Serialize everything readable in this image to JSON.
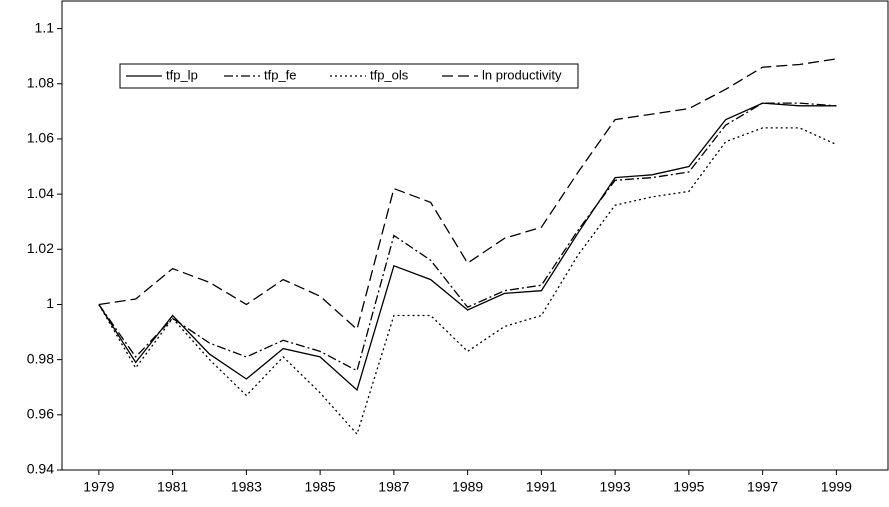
{
  "chart_data": {
    "type": "line",
    "x": [
      1979,
      1980,
      1981,
      1982,
      1983,
      1984,
      1985,
      1986,
      1987,
      1988,
      1989,
      1990,
      1991,
      1992,
      1993,
      1994,
      1995,
      1996,
      1997,
      1998,
      1999
    ],
    "xlim": [
      1978,
      2000.4
    ],
    "xticks": [
      1979,
      1981,
      1983,
      1985,
      1987,
      1989,
      1991,
      1993,
      1995,
      1997,
      1999
    ],
    "ylim": [
      0.94,
      1.11
    ],
    "yticks": [
      0.94,
      0.96,
      0.98,
      1,
      1.02,
      1.04,
      1.06,
      1.08,
      1.1
    ],
    "grid": false,
    "legend": "top-left",
    "series": [
      {
        "name": "tfp_lp",
        "color": "#000000",
        "dash": "solid",
        "values": [
          1.0,
          0.979,
          0.996,
          0.982,
          0.973,
          0.984,
          0.981,
          0.969,
          1.014,
          1.009,
          0.998,
          1.004,
          1.005,
          1.026,
          1.046,
          1.047,
          1.05,
          1.067,
          1.073,
          1.072,
          1.072
        ]
      },
      {
        "name": "tfp_fe",
        "color": "#000000",
        "dash": "dashdot",
        "values": [
          1.0,
          0.981,
          0.995,
          0.986,
          0.981,
          0.987,
          0.983,
          0.976,
          1.025,
          1.016,
          0.999,
          1.005,
          1.007,
          1.027,
          1.045,
          1.046,
          1.048,
          1.065,
          1.073,
          1.073,
          1.072
        ]
      },
      {
        "name": "tfp_ols",
        "color": "#000000",
        "dash": "dotted",
        "values": [
          1.0,
          0.977,
          0.995,
          0.98,
          0.967,
          0.981,
          0.968,
          0.953,
          0.996,
          0.996,
          0.983,
          0.992,
          0.996,
          1.018,
          1.036,
          1.039,
          1.041,
          1.059,
          1.064,
          1.064,
          1.058
        ]
      },
      {
        "name": "ln productivity",
        "color": "#000000",
        "dash": "dashed",
        "values": [
          1.0,
          1.002,
          1.013,
          1.008,
          1.0,
          1.009,
          1.003,
          0.991,
          1.042,
          1.037,
          1.015,
          1.024,
          1.028,
          1.048,
          1.067,
          1.069,
          1.071,
          1.078,
          1.086,
          1.087,
          1.089
        ]
      }
    ]
  }
}
